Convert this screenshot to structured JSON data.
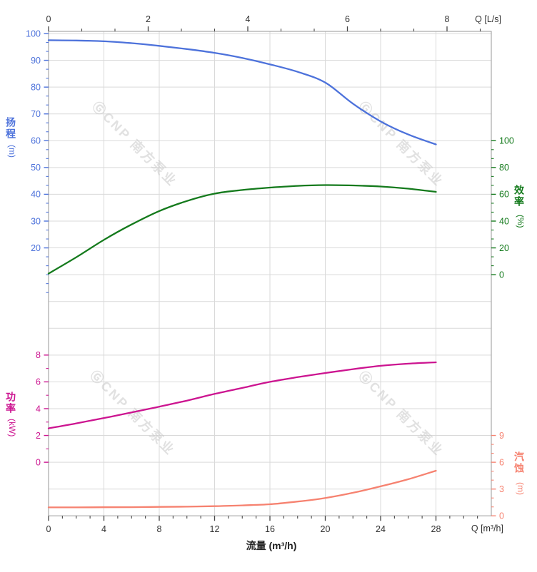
{
  "watermark": {
    "text": "ⒼCNP 南方泵业",
    "color": "#c9c9c9"
  },
  "chart_data": {
    "type": "line",
    "title": "",
    "x_unit_bottom": "m³/h",
    "x_unit_top": "L/s",
    "x_m3h": [
      0,
      2,
      4,
      6,
      8,
      10,
      12,
      14,
      16,
      18,
      20,
      22,
      24,
      26,
      28
    ],
    "series": [
      {
        "name": "扬程",
        "axis": "head",
        "unit": "m",
        "color": "#4d72db",
        "values": [
          97.5,
          97.4,
          97.1,
          96.4,
          95.4,
          94.2,
          92.8,
          90.9,
          88.5,
          85.7,
          81.7,
          73.8,
          67.2,
          62.3,
          58.6
        ]
      },
      {
        "name": "效率",
        "axis": "eff",
        "unit": "%",
        "color": "#147a1c",
        "values": [
          0.8,
          13,
          26,
          37.5,
          47.5,
          55,
          60.5,
          63.2,
          65,
          66.3,
          66.9,
          66.6,
          65.8,
          64.2,
          61.8
        ]
      },
      {
        "name": "功率",
        "axis": "power",
        "unit": "kW",
        "color": "#cc1490",
        "values": [
          2.53,
          2.9,
          3.3,
          3.72,
          4.15,
          4.6,
          5.1,
          5.55,
          6.0,
          6.35,
          6.66,
          6.95,
          7.2,
          7.36,
          7.46
        ]
      },
      {
        "name": "汽蚀",
        "axis": "npsh",
        "unit": "m",
        "color": "#f68270",
        "values": [
          0.95,
          0.95,
          0.96,
          0.97,
          1.0,
          1.03,
          1.08,
          1.17,
          1.3,
          1.6,
          2.0,
          2.58,
          3.3,
          4.1,
          5.05
        ]
      }
    ],
    "x_axes": {
      "top": {
        "label": "Q [L/s]",
        "ticks": [
          0,
          2,
          4,
          6,
          8
        ],
        "minor_div": 3,
        "m3h_per_unit": 3.6,
        "range": [
          0,
          8.89
        ]
      },
      "bottom": {
        "label": "Q [m³/h]",
        "title": "流量 (m³/h)",
        "ticks": [
          0,
          4,
          8,
          12,
          16,
          20,
          24,
          28
        ],
        "minor_div": 4,
        "range": [
          0,
          32
        ]
      }
    },
    "y_axes": {
      "head": {
        "label": "扬程",
        "unit": "(m)",
        "side": "left",
        "color": "#4d72db",
        "ticks": [
          100,
          90,
          80,
          70,
          60,
          50,
          40,
          30,
          20
        ],
        "minor_div": 3,
        "max_value": 100,
        "value_per_row": 10,
        "row_of_max": 0,
        "extra_minor_rows": [
          8.333,
          8.667,
          9,
          9.333,
          9.667
        ]
      },
      "eff": {
        "label": "效率",
        "unit": "(%)",
        "side": "right",
        "color": "#147a1c",
        "ticks": [
          100,
          80,
          60,
          40,
          20,
          0
        ],
        "minor_div": 3,
        "max_value": 100,
        "value_per_row": 20,
        "row_of_max": 4,
        "extra_minor_rows": []
      },
      "power": {
        "label": "功率",
        "unit": "(kW)",
        "side": "left",
        "color": "#cc1490",
        "ticks": [
          8,
          6,
          4,
          2,
          0
        ],
        "minor_div": 2,
        "max_value": 8,
        "value_per_row": 2,
        "row_of_max": 12,
        "extra_minor_rows": []
      },
      "npsh": {
        "label": "汽蚀",
        "unit": "(m)",
        "side": "right",
        "color": "#f68270",
        "ticks": [
          9,
          6,
          3,
          0
        ],
        "minor_div": 3,
        "max_value": 9,
        "value_per_row": 3,
        "row_of_max": 15,
        "extra_minor_rows": []
      }
    },
    "grid": {
      "shown": true,
      "column_step_m3h": 4,
      "color": "#d9d9d9"
    }
  }
}
